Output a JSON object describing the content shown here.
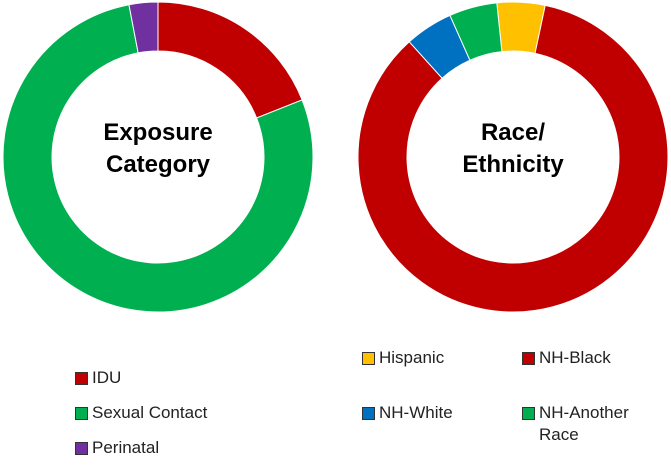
{
  "chart_data": [
    {
      "type": "donut",
      "title": "Exposure Category",
      "categories": [
        "IDU",
        "Sexual Contact",
        "Perinatal"
      ],
      "values": [
        19,
        78,
        3
      ],
      "colors": [
        "#c00000",
        "#00b050",
        "#7030a0"
      ]
    },
    {
      "type": "donut",
      "title": "Race/ Ethnicity",
      "categories": [
        "Hispanic",
        "NH-Black",
        "NH-White",
        "NH-Another Race"
      ],
      "values": [
        5,
        85,
        5,
        5
      ],
      "colors": [
        "#ffc000",
        "#c00000",
        "#0070c0",
        "#00b050"
      ]
    }
  ]
}
